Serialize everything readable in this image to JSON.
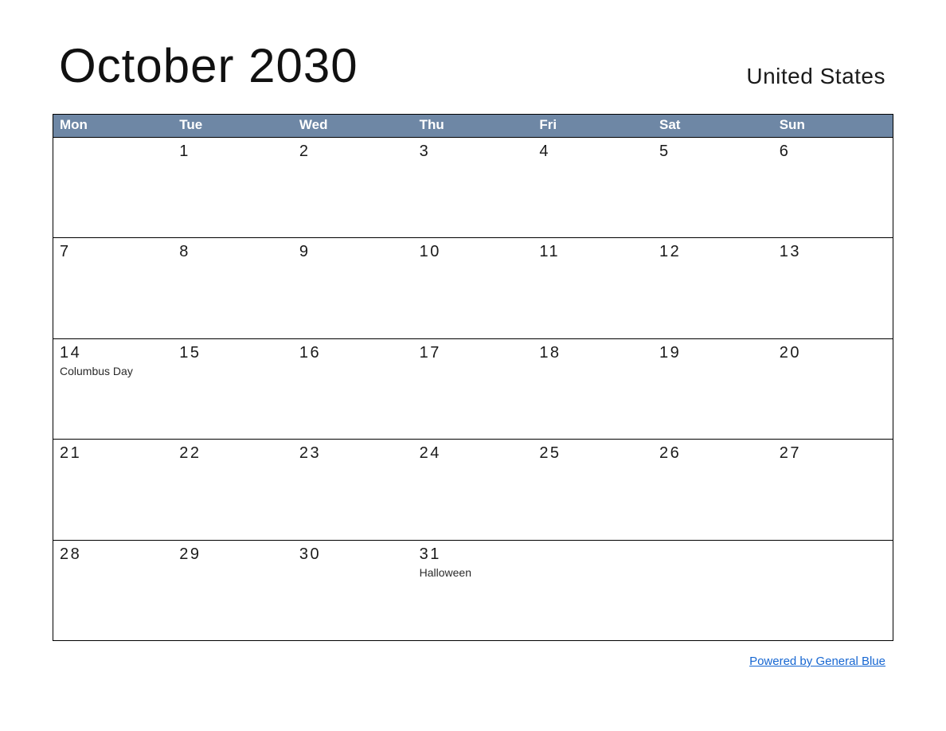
{
  "header": {
    "title": "October 2030",
    "region": "United States"
  },
  "calendar": {
    "weekdays": [
      "Mon",
      "Tue",
      "Wed",
      "Thu",
      "Fri",
      "Sat",
      "Sun"
    ],
    "weeks": [
      [
        {
          "day": "",
          "holiday": ""
        },
        {
          "day": "1",
          "holiday": ""
        },
        {
          "day": "2",
          "holiday": ""
        },
        {
          "day": "3",
          "holiday": ""
        },
        {
          "day": "4",
          "holiday": ""
        },
        {
          "day": "5",
          "holiday": ""
        },
        {
          "day": "6",
          "holiday": ""
        }
      ],
      [
        {
          "day": "7",
          "holiday": ""
        },
        {
          "day": "8",
          "holiday": ""
        },
        {
          "day": "9",
          "holiday": ""
        },
        {
          "day": "10",
          "holiday": ""
        },
        {
          "day": "11",
          "holiday": ""
        },
        {
          "day": "12",
          "holiday": ""
        },
        {
          "day": "13",
          "holiday": ""
        }
      ],
      [
        {
          "day": "14",
          "holiday": "Columbus Day"
        },
        {
          "day": "15",
          "holiday": ""
        },
        {
          "day": "16",
          "holiday": ""
        },
        {
          "day": "17",
          "holiday": ""
        },
        {
          "day": "18",
          "holiday": ""
        },
        {
          "day": "19",
          "holiday": ""
        },
        {
          "day": "20",
          "holiday": ""
        }
      ],
      [
        {
          "day": "21",
          "holiday": ""
        },
        {
          "day": "22",
          "holiday": ""
        },
        {
          "day": "23",
          "holiday": ""
        },
        {
          "day": "24",
          "holiday": ""
        },
        {
          "day": "25",
          "holiday": ""
        },
        {
          "day": "26",
          "holiday": ""
        },
        {
          "day": "27",
          "holiday": ""
        }
      ],
      [
        {
          "day": "28",
          "holiday": ""
        },
        {
          "day": "29",
          "holiday": ""
        },
        {
          "day": "30",
          "holiday": ""
        },
        {
          "day": "31",
          "holiday": "Halloween"
        },
        {
          "day": "",
          "holiday": ""
        },
        {
          "day": "",
          "holiday": ""
        },
        {
          "day": "",
          "holiday": ""
        }
      ]
    ]
  },
  "footer": {
    "link_label": "Powered by General Blue"
  },
  "colors": {
    "weekday_header_bg": "#6E87A5",
    "weekday_header_text": "#FFFFFF",
    "table_border": "#000000",
    "link": "#1767D2"
  }
}
